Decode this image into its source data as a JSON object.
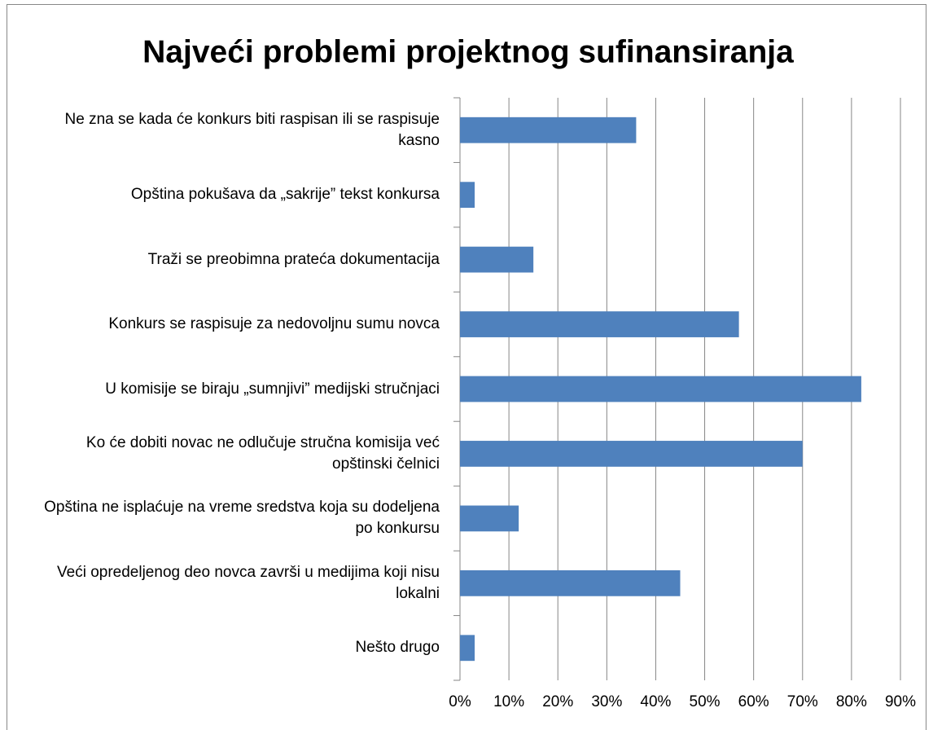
{
  "chart_data": {
    "type": "bar",
    "orientation": "horizontal",
    "title": "Najveći problemi projektnog sufinansiranja",
    "categories": [
      "Ne zna se kada će konkurs biti raspisan ili se raspisuje kasno",
      "Opština pokušava da „sakrije” tekst konkursa",
      "Traži se preobimna prateća dokumentacija",
      "Konkurs se raspisuje za nedovoljnu sumu novca",
      "U komisije se biraju „sumnjivi” medijski stručnjaci",
      "Ko će dobiti novac ne odlučuje stručna komisija već opštinski čelnici",
      "Opština ne isplaćuje na vreme sredstva koja su dodeljena po konkursu",
      "Veći opredeljenog deo novca završi u medijima koji nisu lokalni",
      "Nešto drugo"
    ],
    "values": [
      36,
      3,
      15,
      57,
      82,
      70,
      12,
      45,
      3
    ],
    "color": "#4f81bd",
    "xlim": [
      0,
      90
    ],
    "xticks": [
      {
        "value": 0,
        "label": "0%"
      },
      {
        "value": 10,
        "label": "10%"
      },
      {
        "value": 20,
        "label": "20%"
      },
      {
        "value": 30,
        "label": "30%"
      },
      {
        "value": 40,
        "label": "40%"
      },
      {
        "value": 50,
        "label": "50%"
      },
      {
        "value": 60,
        "label": "60%"
      },
      {
        "value": 70,
        "label": "70%"
      },
      {
        "value": 80,
        "label": "80%"
      },
      {
        "value": 90,
        "label": "90%"
      }
    ],
    "grid": true
  }
}
